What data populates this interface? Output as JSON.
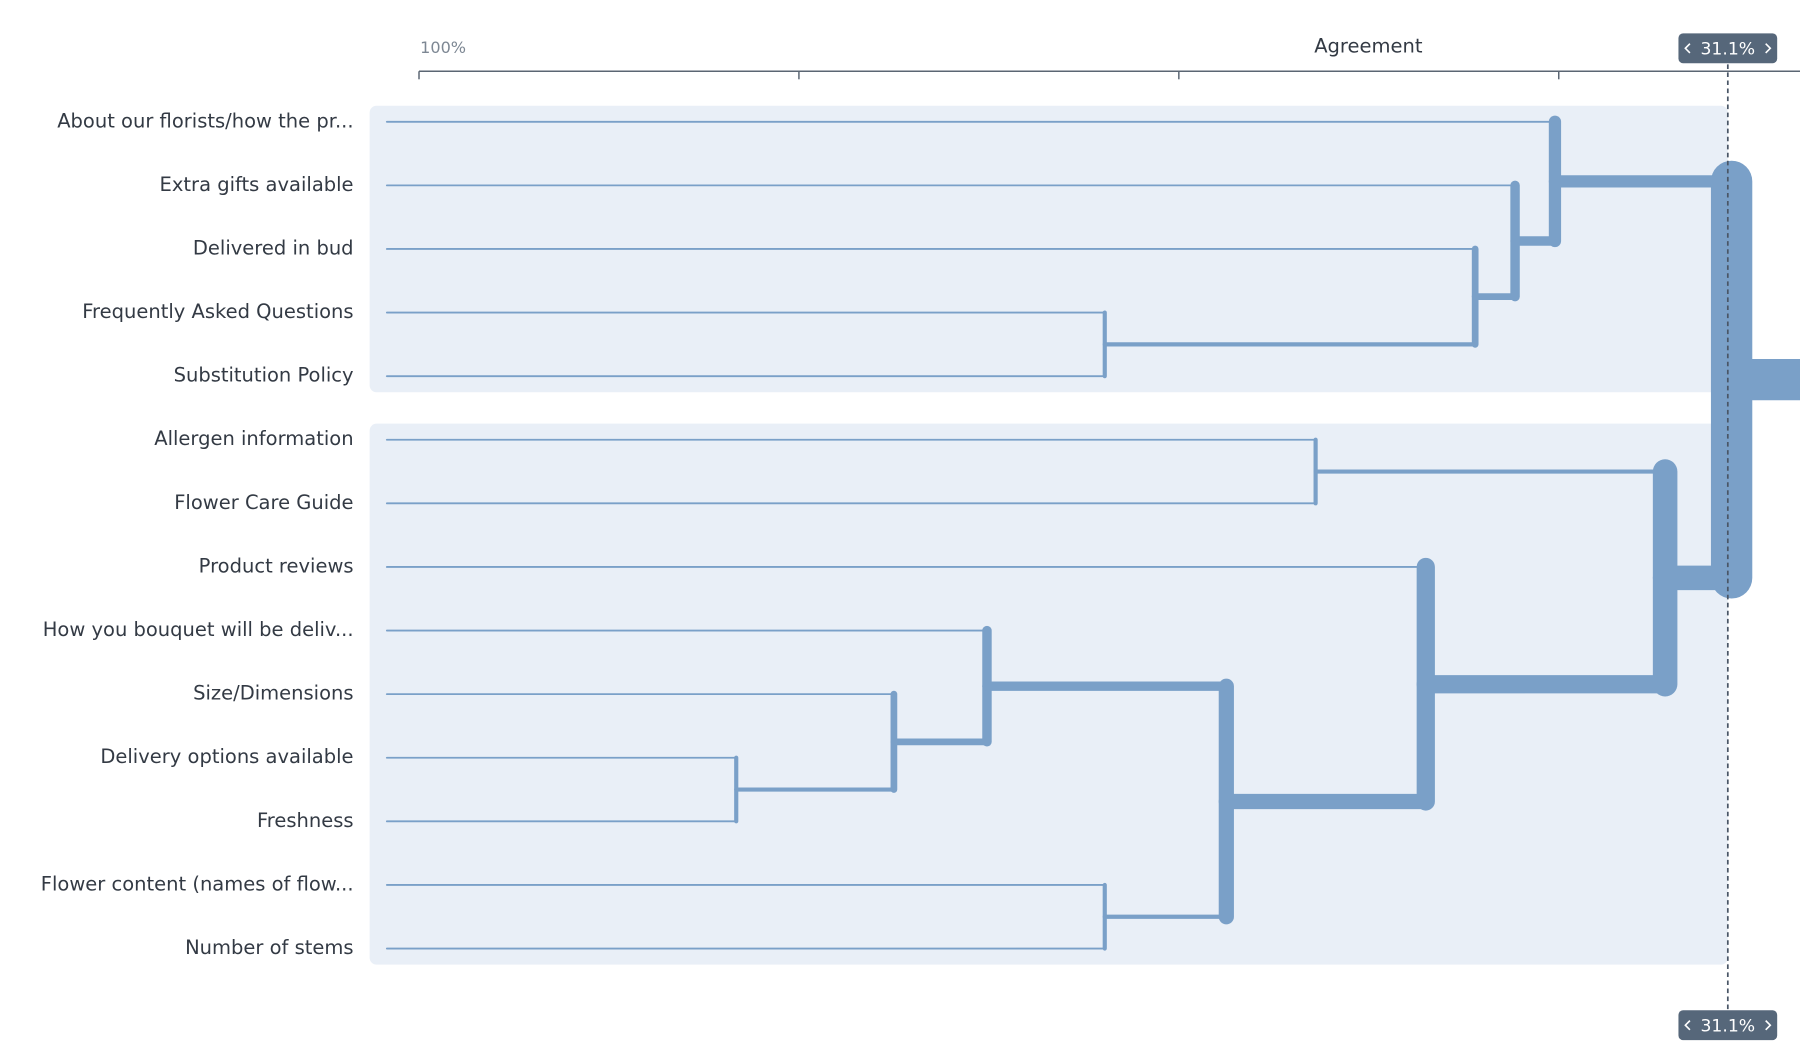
{
  "chart_data": {
    "type": "dendrogram",
    "x_label": "Agreement",
    "xlim": [
      100,
      27.3
    ],
    "xticks": [
      {
        "value": 100,
        "label": "100%"
      },
      {
        "value": 80,
        "label": null
      },
      {
        "value": 60,
        "label": null
      },
      {
        "value": 40,
        "label": null
      }
    ],
    "cut": {
      "value": 31.1,
      "label": "31.1%"
    },
    "color": "#7aa0c8",
    "group_color": "#e9eff7",
    "leaves": [
      "About our florists/how the pr...",
      "Extra gifts available",
      "Delivered in bud",
      "Frequently Asked Questions",
      "Substitution Policy",
      "Allergen information",
      "Flower Care Guide",
      "Product reviews",
      "How you bouquet will be deliv...",
      "Size/Dimensions",
      "Delivery options available",
      "Freshness",
      "Flower content (names of flow...",
      "Number of stems"
    ],
    "merges": [
      [
        10,
        11,
        83.3
      ],
      [
        9,
        14,
        75.0
      ],
      [
        8,
        15,
        70.1
      ],
      [
        12,
        13,
        63.9
      ],
      [
        16,
        17,
        57.5
      ],
      [
        7,
        18,
        47.0
      ],
      [
        5,
        6,
        52.8
      ],
      [
        20,
        19,
        34.4
      ],
      [
        3,
        4,
        63.9
      ],
      [
        2,
        22,
        44.4
      ],
      [
        1,
        23,
        42.3
      ],
      [
        0,
        24,
        40.2
      ],
      [
        25,
        21,
        30.9
      ]
    ]
  }
}
